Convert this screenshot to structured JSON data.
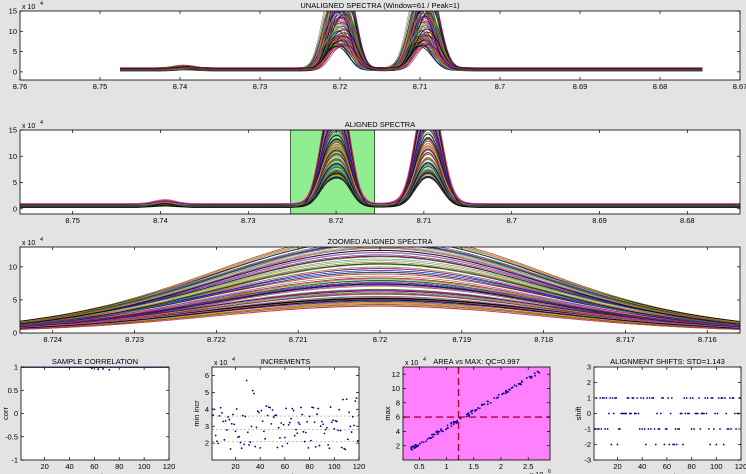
{
  "colors": {
    "figure_bg": "#e3e3e3",
    "axes_bg": "#ffffff",
    "highlight_green": "#90ee90",
    "magenta_bg": "#ff80ff",
    "dark_red": "#b0003a",
    "marker_blue": "#000090",
    "correlation_red": "#d00000"
  },
  "chart_data": [
    {
      "id": "unaligned",
      "type": "line",
      "title": "UNALIGNED SPECTRA (Window=61 / Peak=1)",
      "x_reversed": true,
      "xlim": [
        8.67,
        8.76
      ],
      "ylim": [
        -2,
        15
      ],
      "xticks": [
        8.76,
        8.75,
        8.74,
        8.73,
        8.72,
        8.71,
        8.7,
        8.69,
        8.68,
        8.67
      ],
      "xtick_labels": [
        "8.76",
        "8.75",
        "8.74",
        "8.73",
        "8.72",
        "8.71",
        "8.7",
        "8.69",
        "8.68",
        "8.67"
      ],
      "yticks": [
        0,
        5,
        10,
        15
      ],
      "ytick_labels": [
        "0",
        "5",
        "10",
        "15"
      ],
      "exponent_label": "x 10",
      "exponent_power": "4",
      "data_range": [
        8.6747,
        8.7475
      ],
      "spectra_count": 120,
      "max_height": 13.5
    },
    {
      "id": "aligned",
      "type": "line",
      "title": "ALIGNED SPECTRA",
      "x_reversed": true,
      "xlim": [
        8.674,
        8.756
      ],
      "ylim": [
        -1,
        15
      ],
      "xticks": [
        8.75,
        8.74,
        8.73,
        8.72,
        8.71,
        8.7,
        8.69,
        8.68
      ],
      "xtick_labels": [
        "8.75",
        "8.74",
        "8.73",
        "8.72",
        "8.71",
        "8.7",
        "8.69",
        "8.68"
      ],
      "yticks": [
        0,
        5,
        10,
        15
      ],
      "ytick_labels": [
        "0",
        "5",
        "10",
        "15"
      ],
      "exponent_label": "x 10",
      "exponent_power": "4",
      "highlight_window": [
        8.7156,
        8.7252
      ],
      "spectra_count": 120,
      "max_height": 13.5
    },
    {
      "id": "zoomed",
      "type": "line",
      "title": "ZOOMED ALIGNED SPECTRA",
      "x_reversed": true,
      "xlim": [
        8.7156,
        8.7244
      ],
      "ylim": [
        0,
        13
      ],
      "xticks": [
        8.724,
        8.723,
        8.722,
        8.721,
        8.72,
        8.719,
        8.718,
        8.717,
        8.716
      ],
      "xtick_labels": [
        "8.724",
        "8.723",
        "8.722",
        "8.721",
        "8.72",
        "8.719",
        "8.718",
        "8.717",
        "8.716"
      ],
      "yticks": [
        0,
        5,
        10
      ],
      "ytick_labels": [
        "0",
        "5",
        "10"
      ],
      "exponent_label": "x 10",
      "exponent_power": "4",
      "spectra_count": 120,
      "max_height": 12.2
    },
    {
      "id": "correlation",
      "type": "line",
      "title": "SAMPLE CORRELATION",
      "xlabel": "sample",
      "ylabel": "corr",
      "xlim": [
        1,
        120
      ],
      "ylim": [
        -1,
        1
      ],
      "xticks": [
        20,
        40,
        60,
        80,
        100,
        120
      ],
      "xtick_labels": [
        "20",
        "40",
        "60",
        "80",
        "100",
        "120"
      ],
      "yticks": [
        -1,
        -0.5,
        0,
        0.5,
        1
      ],
      "ytick_labels": [
        "-1",
        "-0.5",
        "0",
        "0.5",
        "1"
      ],
      "x": [
        1,
        10,
        20,
        30,
        40,
        50,
        58,
        60,
        63,
        70,
        80,
        90,
        100,
        110,
        120
      ],
      "values": [
        0.999,
        0.999,
        0.999,
        0.998,
        0.998,
        0.999,
        0.99,
        0.998,
        0.985,
        0.999,
        0.999,
        0.998,
        0.999,
        0.999,
        0.999
      ],
      "points_x": [
        58,
        63,
        67,
        72
      ],
      "points_y": [
        0.97,
        0.95,
        0.96,
        0.94
      ]
    },
    {
      "id": "increments",
      "type": "scatter",
      "title": "INCREMENTS",
      "xlabel": "sample",
      "ylabel": "min incr",
      "xlim": [
        1,
        120
      ],
      "ylim": [
        1,
        6.5
      ],
      "xticks": [
        20,
        40,
        60,
        80,
        100,
        120
      ],
      "xtick_labels": [
        "20",
        "40",
        "60",
        "80",
        "100",
        "120"
      ],
      "yticks": [
        2,
        3,
        4,
        5,
        6
      ],
      "ytick_labels": [
        "2",
        "3",
        "4",
        "5",
        "6"
      ],
      "exponent_label": "x 10",
      "exponent_power": "4",
      "reference_lines": [
        2.1,
        2.8,
        3.6
      ],
      "points_count": 120
    },
    {
      "id": "area_vs_max",
      "type": "scatter",
      "title": "AREA vs MAX: QC=0.997",
      "xlabel": "area",
      "ylabel": "max",
      "xlim": [
        0.2,
        2.9
      ],
      "ylim": [
        0,
        13
      ],
      "xticks": [
        0.5,
        1,
        1.5,
        2,
        2.5
      ],
      "xtick_labels": [
        "0.5",
        "1",
        "1.5",
        "2",
        "2.5"
      ],
      "yticks": [
        2,
        4,
        6,
        8,
        10,
        12
      ],
      "ytick_labels": [
        "2",
        "4",
        "6",
        "8",
        "10",
        "12"
      ],
      "exponent_label": "x 10",
      "exponent_power": "4",
      "x_exponent_label": "x 10",
      "x_exponent_power": "6",
      "vline": 1.22,
      "hline": 6.0,
      "points_count": 120
    },
    {
      "id": "shifts",
      "type": "scatter",
      "title": "ALIGNMENT SHIFTS: STD=1.143",
      "xlabel": "sample",
      "ylabel": "shift",
      "xlim": [
        1,
        120
      ],
      "ylim": [
        -3,
        3
      ],
      "xticks": [
        20,
        40,
        60,
        80,
        100,
        120
      ],
      "xtick_labels": [
        "20",
        "40",
        "60",
        "80",
        "100",
        "120"
      ],
      "yticks": [
        -3,
        -2,
        -1,
        0,
        1,
        2,
        3
      ],
      "ytick_labels": [
        "-3",
        "-2",
        "-1",
        "0",
        "1",
        "2",
        "3"
      ],
      "levels": [
        1,
        0,
        -1,
        -2
      ],
      "points_count": 120
    }
  ]
}
